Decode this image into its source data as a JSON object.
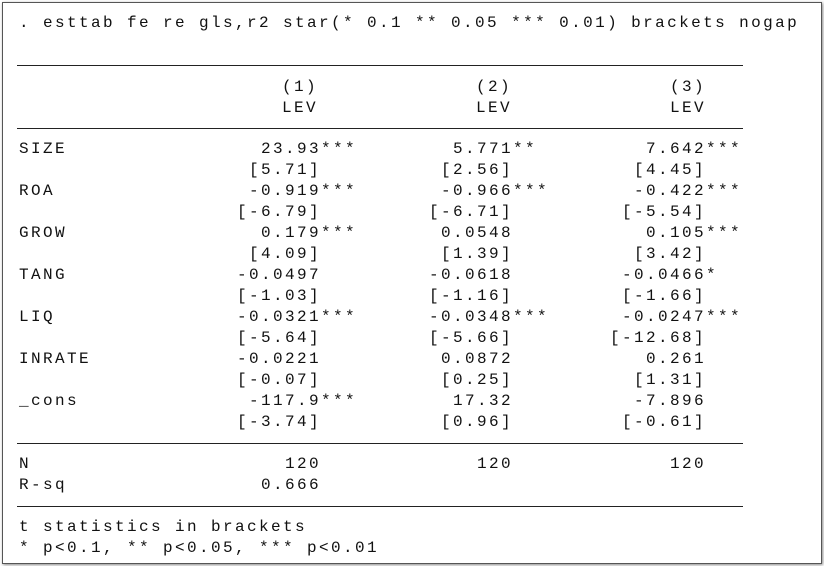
{
  "command": ". esttab fe re gls,r2 star(* 0.1 ** 0.05 *** 0.01) brackets nogap",
  "table": {
    "columns": [
      {
        "number": "(1)",
        "depvar": "LEV"
      },
      {
        "number": "(2)",
        "depvar": "LEV"
      },
      {
        "number": "(3)",
        "depvar": "LEV"
      }
    ],
    "rows": [
      {
        "label": "SIZE",
        "coefs": [
          "23.93***",
          "5.771**",
          "7.642***"
        ],
        "tstats": [
          "[5.71]",
          "[2.56]",
          "[4.45]"
        ]
      },
      {
        "label": "ROA",
        "coefs": [
          "-0.919***",
          "-0.966***",
          "-0.422***"
        ],
        "tstats": [
          "[-6.79]",
          "[-6.71]",
          "[-5.54]"
        ]
      },
      {
        "label": "GROW",
        "coefs": [
          "0.179***",
          "0.0548",
          "0.105***"
        ],
        "tstats": [
          "[4.09]",
          "[1.39]",
          "[3.42]"
        ]
      },
      {
        "label": "TANG",
        "coefs": [
          "-0.0497",
          "-0.0618",
          "-0.0466*"
        ],
        "tstats": [
          "[-1.03]",
          "[-1.16]",
          "[-1.66]"
        ]
      },
      {
        "label": "LIQ",
        "coefs": [
          "-0.0321***",
          "-0.0348***",
          "-0.0247***"
        ],
        "tstats": [
          "[-5.64]",
          "[-5.66]",
          "[-12.68]"
        ]
      },
      {
        "label": "INRATE",
        "coefs": [
          "-0.0221",
          "0.0872",
          "0.261"
        ],
        "tstats": [
          "[-0.07]",
          "[0.25]",
          "[1.31]"
        ]
      },
      {
        "label": "_cons",
        "coefs": [
          "-117.9***",
          "17.32",
          "-7.896"
        ],
        "tstats": [
          "[-3.74]",
          "[0.96]",
          "[-0.61]"
        ]
      }
    ],
    "stats": [
      {
        "label": "N",
        "values": [
          "120",
          "120",
          "120"
        ]
      },
      {
        "label": "R-sq",
        "values": [
          "0.666"
        ]
      }
    ]
  },
  "notes": [
    "t statistics in brackets",
    "* p<0.1, ** p<0.05, *** p<0.01"
  ]
}
